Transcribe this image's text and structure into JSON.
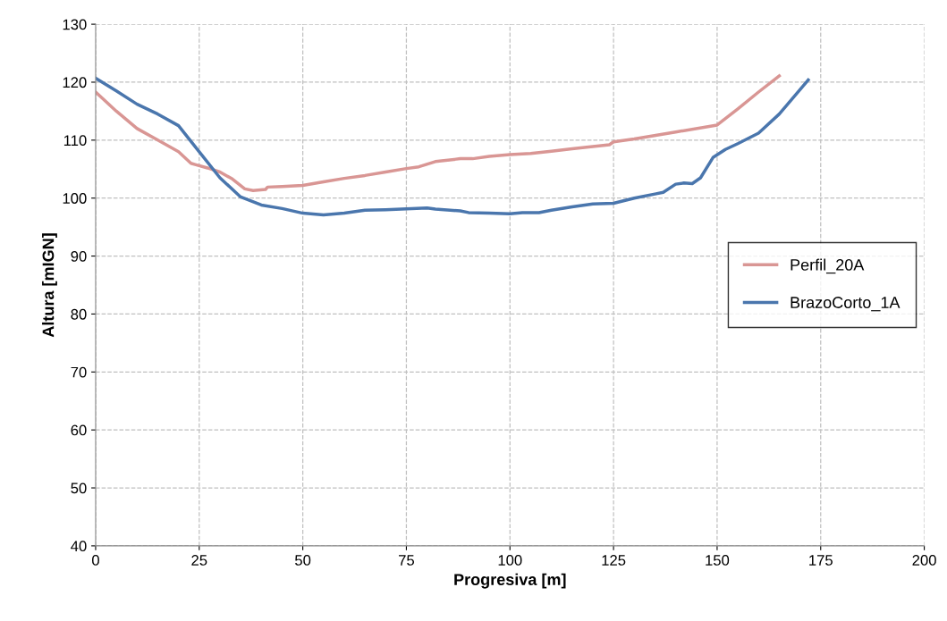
{
  "chart_data": {
    "type": "line",
    "xlabel": "Progresiva [m]",
    "ylabel": "Altura [mIGN]",
    "xlim": [
      0,
      200
    ],
    "xticks": [
      0,
      25,
      50,
      75,
      100,
      125,
      150,
      175,
      200
    ],
    "ylim": [
      40,
      130
    ],
    "yticks": [
      40,
      50,
      60,
      70,
      80,
      90,
      100,
      110,
      120,
      130
    ],
    "grid": true,
    "legend": "right",
    "marker": "none",
    "line_style": "solid",
    "series": [
      {
        "name": "Perfil_20A",
        "color": "#d99694",
        "x": [
          0,
          5,
          10,
          15,
          20,
          23,
          24,
          27,
          30,
          33,
          36,
          38,
          41,
          41.5,
          45,
          50,
          55,
          60,
          65,
          70,
          75,
          78,
          82,
          88,
          91,
          95,
          100,
          105,
          110,
          115,
          120,
          124,
          125,
          130,
          140,
          150,
          155,
          160,
          165
        ],
        "values": [
          118.3,
          115,
          112,
          110,
          108,
          106,
          105.8,
          105.2,
          104.5,
          103.3,
          101.6,
          101.3,
          101.5,
          101.9,
          102,
          102.2,
          102.8,
          103.4,
          103.9,
          104.5,
          105.1,
          105.4,
          106.3,
          106.8,
          106.8,
          107.2,
          107.5,
          107.7,
          108.1,
          108.5,
          108.9,
          109.2,
          109.7,
          110.2,
          111.4,
          112.6,
          115.4,
          118.3,
          121.1
        ]
      },
      {
        "name": "BrazoCorto_1A",
        "color": "#4a76ad",
        "x": [
          0,
          5,
          10,
          15,
          20,
          25,
          30,
          35,
          40,
          45,
          50,
          55,
          60,
          65,
          70,
          80,
          82,
          88,
          90,
          95,
          100,
          103,
          107,
          110,
          115,
          120,
          125,
          130,
          135,
          137,
          140,
          142,
          144,
          146,
          149,
          152,
          155,
          160,
          165,
          172
        ],
        "values": [
          120.7,
          118.5,
          116.2,
          114.5,
          112.5,
          108,
          103.5,
          100.2,
          98.8,
          98.2,
          97.4,
          97.1,
          97.4,
          97.9,
          98,
          98.3,
          98.1,
          97.8,
          97.5,
          97.4,
          97.3,
          97.5,
          97.5,
          97.9,
          98.5,
          99,
          99.1,
          100,
          100.7,
          101,
          102.4,
          102.6,
          102.5,
          103.5,
          107,
          108.4,
          109.4,
          111.2,
          114.5,
          120.4
        ]
      }
    ]
  }
}
